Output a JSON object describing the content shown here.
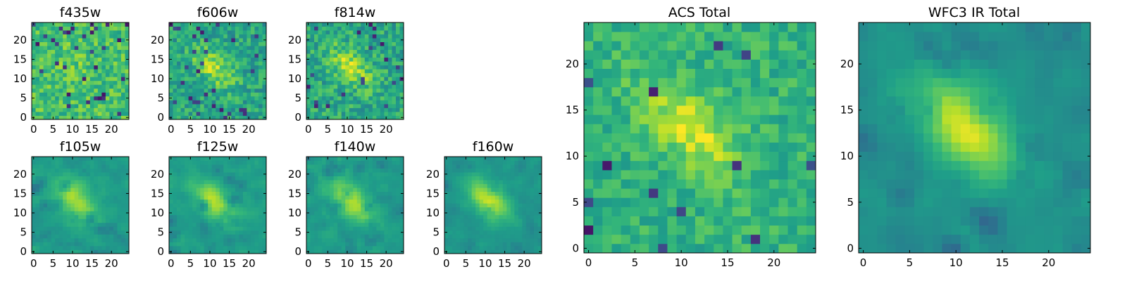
{
  "chart_data": [
    {
      "type": "heatmap",
      "title": "f435w",
      "xticks": [
        "0",
        "5",
        "10",
        "15",
        "20"
      ],
      "yticks": [
        "0",
        "5",
        "10",
        "15",
        "20"
      ],
      "xlim": [
        0,
        25
      ],
      "ylim": [
        0,
        25
      ],
      "colormap": "viridis",
      "grid": false
    },
    {
      "type": "heatmap",
      "title": "f606w",
      "xticks": [
        "0",
        "5",
        "10",
        "15",
        "20"
      ],
      "yticks": [
        "0",
        "5",
        "10",
        "15",
        "20"
      ],
      "xlim": [
        0,
        25
      ],
      "ylim": [
        0,
        25
      ],
      "colormap": "viridis",
      "grid": false
    },
    {
      "type": "heatmap",
      "title": "f814w",
      "xticks": [
        "0",
        "5",
        "10",
        "15",
        "20"
      ],
      "yticks": [
        "0",
        "5",
        "10",
        "15",
        "20"
      ],
      "xlim": [
        0,
        25
      ],
      "ylim": [
        0,
        25
      ],
      "colormap": "viridis",
      "grid": false
    },
    {
      "type": "heatmap",
      "title": "f105w",
      "xticks": [
        "0",
        "5",
        "10",
        "15",
        "20"
      ],
      "yticks": [
        "0",
        "5",
        "10",
        "15",
        "20"
      ],
      "xlim": [
        0,
        25
      ],
      "ylim": [
        0,
        25
      ],
      "colormap": "viridis",
      "grid": false
    },
    {
      "type": "heatmap",
      "title": "f125w",
      "xticks": [
        "0",
        "5",
        "10",
        "15",
        "20"
      ],
      "yticks": [
        "0",
        "5",
        "10",
        "15",
        "20"
      ],
      "xlim": [
        0,
        25
      ],
      "ylim": [
        0,
        25
      ],
      "colormap": "viridis",
      "grid": false
    },
    {
      "type": "heatmap",
      "title": "f140w",
      "xticks": [
        "0",
        "5",
        "10",
        "15",
        "20"
      ],
      "yticks": [
        "0",
        "5",
        "10",
        "15",
        "20"
      ],
      "xlim": [
        0,
        25
      ],
      "ylim": [
        0,
        25
      ],
      "colormap": "viridis",
      "grid": false
    },
    {
      "type": "heatmap",
      "title": "f160w",
      "xticks": [
        "0",
        "5",
        "10",
        "15",
        "20"
      ],
      "yticks": [
        "0",
        "5",
        "10",
        "15",
        "20"
      ],
      "xlim": [
        0,
        25
      ],
      "ylim": [
        0,
        25
      ],
      "colormap": "viridis",
      "grid": false
    },
    {
      "type": "heatmap",
      "title": "ACS Total",
      "xticks": [
        "0",
        "5",
        "10",
        "15",
        "20"
      ],
      "yticks": [
        "0",
        "5",
        "10",
        "15",
        "20"
      ],
      "xlim": [
        0,
        25
      ],
      "ylim": [
        0,
        25
      ],
      "colormap": "viridis",
      "grid": false
    },
    {
      "type": "heatmap",
      "title": "WFC3 IR Total",
      "xticks": [
        "0",
        "5",
        "10",
        "15",
        "20"
      ],
      "yticks": [
        "0",
        "5",
        "10",
        "15",
        "20"
      ],
      "xlim": [
        0,
        25
      ],
      "ylim": [
        0,
        25
      ],
      "colormap": "viridis",
      "grid": false
    }
  ]
}
